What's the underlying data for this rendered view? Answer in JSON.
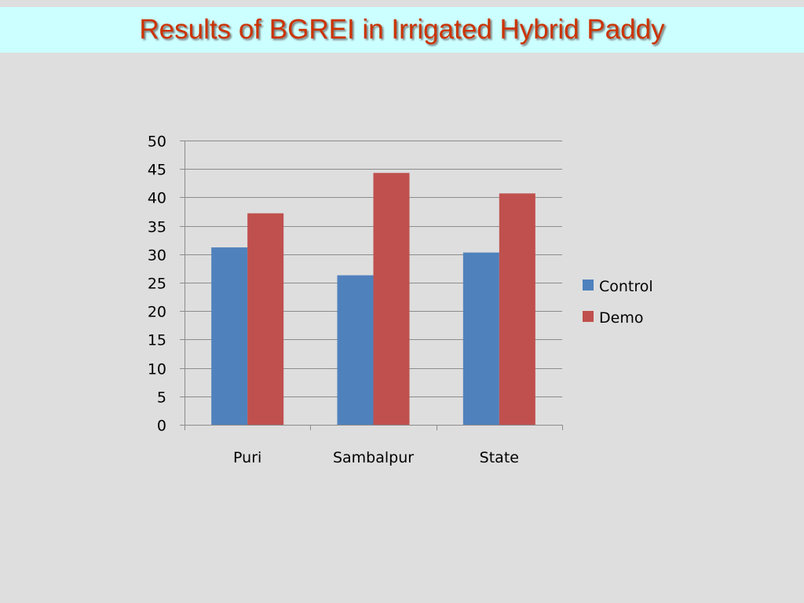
{
  "slide": {
    "title": "Results of BGREI in Irrigated Hybrid Paddy",
    "title_color": "#cc3300",
    "banner_color": "#ccffff",
    "background_color": "#dedede"
  },
  "chart_data": {
    "type": "bar",
    "title": "",
    "xlabel": "",
    "ylabel": "",
    "categories": [
      "Puri",
      "Sambalpur",
      "State"
    ],
    "series": [
      {
        "name": "Control",
        "color": "#4f81bd",
        "values": [
          31.2,
          26.3,
          30.3
        ]
      },
      {
        "name": "Demo",
        "color": "#c0504d",
        "values": [
          37.2,
          44.3,
          40.7
        ]
      }
    ],
    "ylim": [
      0,
      50
    ],
    "yticks": [
      0,
      5,
      10,
      15,
      20,
      25,
      30,
      35,
      40,
      45,
      50
    ],
    "grid": true,
    "legend_position": "right"
  }
}
